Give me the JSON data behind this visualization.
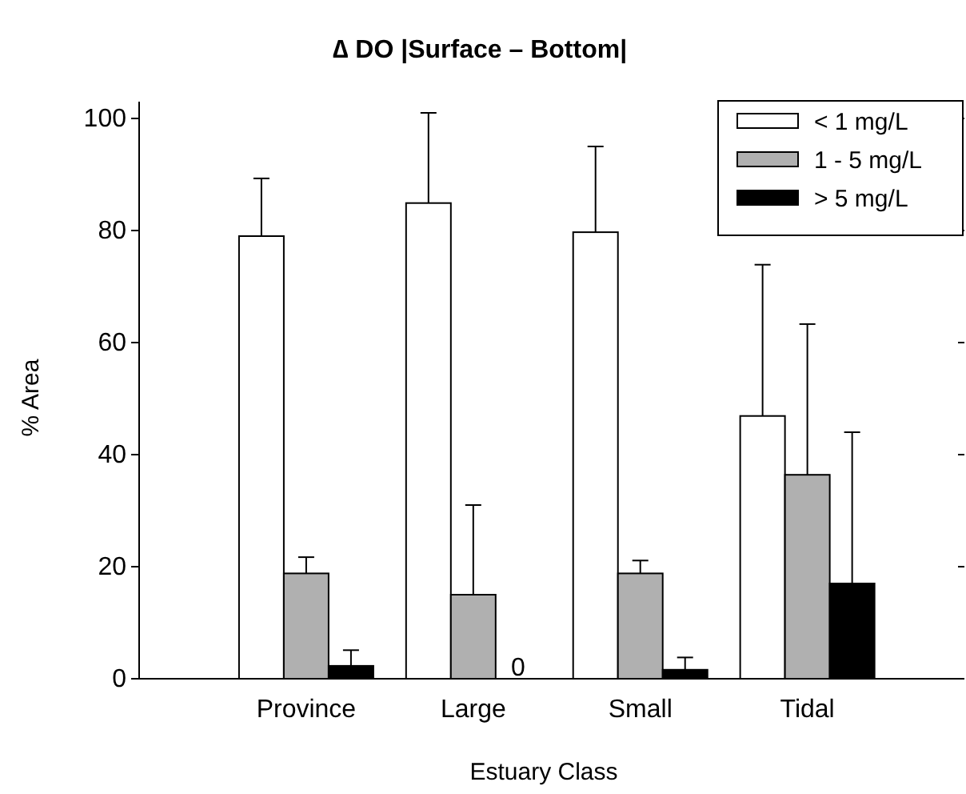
{
  "chart_data": {
    "type": "bar",
    "title": "∆ DO |Surface – Bottom|",
    "xlabel": "Estuary Class",
    "ylabel": "% Area",
    "categories": [
      "Province",
      "Large",
      "Small",
      "Tidal"
    ],
    "series": [
      {
        "name": "< 1 mg/L",
        "color": "#ffffff",
        "values": [
          79,
          84.9,
          79.7,
          46.9
        ],
        "errors": [
          [
            79,
            89.3
          ],
          [
            84.9,
            101
          ],
          [
            79.7,
            95
          ],
          [
            46.9,
            73.9
          ]
        ]
      },
      {
        "name": "1 - 5 mg/L",
        "color": "#b0b0b0",
        "values": [
          18.8,
          15,
          18.8,
          36.4
        ],
        "errors": [
          [
            18.8,
            21.7
          ],
          [
            15,
            31
          ],
          [
            18.8,
            21.1
          ],
          [
            36.4,
            63.3
          ]
        ]
      },
      {
        "name": "> 5 mg/L",
        "color": "#000000",
        "values": [
          2.3,
          0,
          1.6,
          17
        ],
        "errors": [
          [
            2.3,
            5.1
          ],
          null,
          [
            1.6,
            3.8
          ],
          [
            17,
            44
          ]
        ]
      }
    ],
    "annotations": [
      {
        "text": "0",
        "x": "Large",
        "y": 0
      }
    ],
    "ylim": [
      0,
      103
    ],
    "yticks": [
      0,
      20,
      40,
      60,
      80,
      100
    ],
    "grid": false,
    "legend": "top right"
  }
}
